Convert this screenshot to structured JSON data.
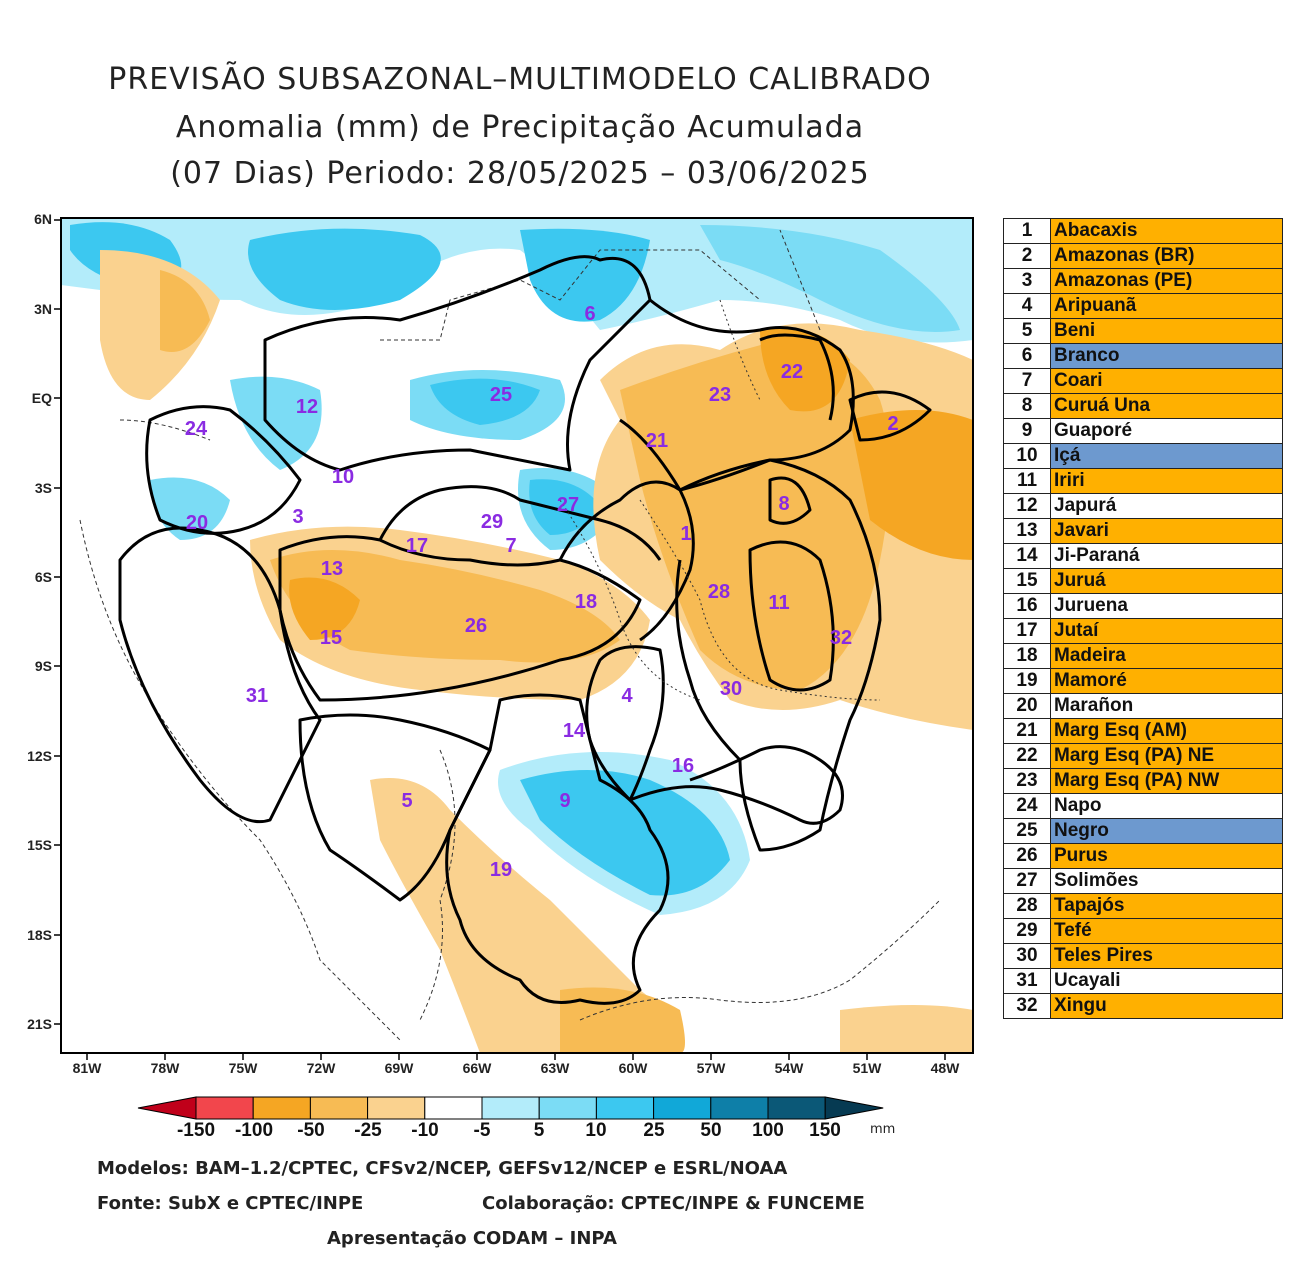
{
  "title": {
    "line1": "PREVISÃO SUBSAZONAL–MULTIMODELO CALIBRADO",
    "line2": "Anomalia (mm) de Precipitação Acumulada",
    "line3": "(07 Dias) Periodo: 28/05/2025 – 03/06/2025"
  },
  "axes": {
    "lat_ticks": [
      "6N",
      "3N",
      "EQ",
      "3S",
      "6S",
      "9S",
      "12S",
      "15S",
      "18S",
      "21S"
    ],
    "lon_ticks": [
      "81W",
      "78W",
      "75W",
      "72W",
      "69W",
      "66W",
      "63W",
      "60W",
      "57W",
      "54W",
      "51W",
      "48W"
    ]
  },
  "colorbar": {
    "labels": [
      "-150",
      "-100",
      "-50",
      "-25",
      "-10",
      "-5",
      "5",
      "10",
      "25",
      "50",
      "100",
      "150"
    ],
    "colors": [
      "#e3001b",
      "#f2464c",
      "#f5a623",
      "#f7bb54",
      "#fad28f",
      "#ffffff",
      "#b3ecfa",
      "#7bdcf5",
      "#3cc8f0",
      "#11a8d8",
      "#0e7fa8",
      "#0b5877"
    ],
    "unit": "mm"
  },
  "basin_labels": [
    {
      "id": "1"
    },
    {
      "id": "2"
    },
    {
      "id": "3"
    },
    {
      "id": "4"
    },
    {
      "id": "5"
    },
    {
      "id": "6"
    },
    {
      "id": "7"
    },
    {
      "id": "8"
    },
    {
      "id": "9"
    },
    {
      "id": "10"
    },
    {
      "id": "11"
    },
    {
      "id": "12"
    },
    {
      "id": "13"
    },
    {
      "id": "14"
    },
    {
      "id": "15"
    },
    {
      "id": "16"
    },
    {
      "id": "17"
    },
    {
      "id": "18"
    },
    {
      "id": "19"
    },
    {
      "id": "20"
    },
    {
      "id": "21"
    },
    {
      "id": "22"
    },
    {
      "id": "23"
    },
    {
      "id": "24"
    },
    {
      "id": "25"
    },
    {
      "id": "26"
    },
    {
      "id": "27"
    },
    {
      "id": "28"
    },
    {
      "id": "29"
    },
    {
      "id": "30"
    },
    {
      "id": "31"
    },
    {
      "id": "32"
    }
  ],
  "legend": [
    {
      "num": "1",
      "name": "Abacaxis",
      "status": "orange"
    },
    {
      "num": "2",
      "name": "Amazonas (BR)",
      "status": "orange"
    },
    {
      "num": "3",
      "name": "Amazonas (PE)",
      "status": "orange"
    },
    {
      "num": "4",
      "name": "Aripuanã",
      "status": "orange"
    },
    {
      "num": "5",
      "name": "Beni",
      "status": "orange"
    },
    {
      "num": "6",
      "name": "Branco",
      "status": "blue"
    },
    {
      "num": "7",
      "name": "Coari",
      "status": "orange"
    },
    {
      "num": "8",
      "name": "Curuá Una",
      "status": "orange"
    },
    {
      "num": "9",
      "name": "Guaporé",
      "status": "white"
    },
    {
      "num": "10",
      "name": "Içá",
      "status": "blue"
    },
    {
      "num": "11",
      "name": "Iriri",
      "status": "orange"
    },
    {
      "num": "12",
      "name": "Japurá",
      "status": "white"
    },
    {
      "num": "13",
      "name": "Javari",
      "status": "orange"
    },
    {
      "num": "14",
      "name": "Ji-Paraná",
      "status": "white"
    },
    {
      "num": "15",
      "name": "Juruá",
      "status": "orange"
    },
    {
      "num": "16",
      "name": "Juruena",
      "status": "white"
    },
    {
      "num": "17",
      "name": "Jutaí",
      "status": "orange"
    },
    {
      "num": "18",
      "name": "Madeira",
      "status": "orange"
    },
    {
      "num": "19",
      "name": "Mamoré",
      "status": "orange"
    },
    {
      "num": "20",
      "name": "Marañon",
      "status": "white"
    },
    {
      "num": "21",
      "name": "Marg Esq (AM)",
      "status": "orange"
    },
    {
      "num": "22",
      "name": "Marg Esq (PA) NE",
      "status": "orange"
    },
    {
      "num": "23",
      "name": "Marg Esq (PA) NW",
      "status": "orange"
    },
    {
      "num": "24",
      "name": "Napo",
      "status": "white"
    },
    {
      "num": "25",
      "name": "Negro",
      "status": "blue"
    },
    {
      "num": "26",
      "name": "Purus",
      "status": "orange"
    },
    {
      "num": "27",
      "name": "Solimões",
      "status": "white"
    },
    {
      "num": "28",
      "name": "Tapajós",
      "status": "orange"
    },
    {
      "num": "29",
      "name": "Tefé",
      "status": "orange"
    },
    {
      "num": "30",
      "name": "Teles Pires",
      "status": "orange"
    },
    {
      "num": "31",
      "name": "Ucayali",
      "status": "white"
    },
    {
      "num": "32",
      "name": "Xingu",
      "status": "orange"
    }
  ],
  "status_colors": {
    "orange": "#ffb000",
    "blue": "#6d99cf",
    "white": "#ffffff"
  },
  "footer": {
    "models": "Modelos: BAM–1.2/CPTEC, CFSv2/NCEP, GEFSv12/NCEP e ESRL/NOAA",
    "source": "Fonte: SubX e CPTEC/INPE",
    "collab": "Colaboração: CPTEC/INPE & FUNCEME",
    "presentation": "Apresentação CODAM – INPA"
  }
}
